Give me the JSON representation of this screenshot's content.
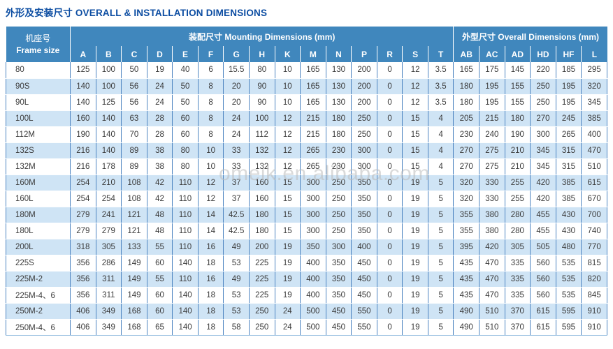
{
  "title": "外形及安装尺寸 OVERALL & INSTALLATION DIMENSIONS",
  "watermark": "omeik.en.alibaba.com",
  "colors": {
    "header_bg": "#4087bd",
    "header_text": "#ffffff",
    "row_alt_bg": "#cfe4f5",
    "grid_line": "#4e85c1",
    "cell_text": "#3b3b3b",
    "title_text": "#0c4da2",
    "watermark_text": "#bcbcbc"
  },
  "table": {
    "frame_header": {
      "zh": "机座号",
      "en": "Frame size"
    },
    "groups": [
      {
        "label": "装配尺寸 Mounting Dimensions (mm)",
        "span": 15
      },
      {
        "label": "外型尺寸 Overall Dimensions (mm)",
        "span": 6
      }
    ],
    "columns": [
      "A",
      "B",
      "C",
      "D",
      "E",
      "F",
      "G",
      "H",
      "K",
      "M",
      "N",
      "P",
      "R",
      "S",
      "T",
      "AB",
      "AC",
      "AD",
      "HD",
      "HF",
      "L"
    ],
    "rows": [
      {
        "frame": "80",
        "values": [
          "125",
          "100",
          "50",
          "19",
          "40",
          "6",
          "15.5",
          "80",
          "10",
          "165",
          "130",
          "200",
          "0",
          "12",
          "3.5",
          "165",
          "175",
          "145",
          "220",
          "185",
          "295"
        ]
      },
      {
        "frame": "90S",
        "values": [
          "140",
          "100",
          "56",
          "24",
          "50",
          "8",
          "20",
          "90",
          "10",
          "165",
          "130",
          "200",
          "0",
          "12",
          "3.5",
          "180",
          "195",
          "155",
          "250",
          "195",
          "320"
        ]
      },
      {
        "frame": "90L",
        "values": [
          "140",
          "125",
          "56",
          "24",
          "50",
          "8",
          "20",
          "90",
          "10",
          "165",
          "130",
          "200",
          "0",
          "12",
          "3.5",
          "180",
          "195",
          "155",
          "250",
          "195",
          "345"
        ]
      },
      {
        "frame": "100L",
        "values": [
          "160",
          "140",
          "63",
          "28",
          "60",
          "8",
          "24",
          "100",
          "12",
          "215",
          "180",
          "250",
          "0",
          "15",
          "4",
          "205",
          "215",
          "180",
          "270",
          "245",
          "385"
        ]
      },
      {
        "frame": "112M",
        "values": [
          "190",
          "140",
          "70",
          "28",
          "60",
          "8",
          "24",
          "112",
          "12",
          "215",
          "180",
          "250",
          "0",
          "15",
          "4",
          "230",
          "240",
          "190",
          "300",
          "265",
          "400"
        ]
      },
      {
        "frame": "132S",
        "values": [
          "216",
          "140",
          "89",
          "38",
          "80",
          "10",
          "33",
          "132",
          "12",
          "265",
          "230",
          "300",
          "0",
          "15",
          "4",
          "270",
          "275",
          "210",
          "345",
          "315",
          "470"
        ]
      },
      {
        "frame": "132M",
        "values": [
          "216",
          "178",
          "89",
          "38",
          "80",
          "10",
          "33",
          "132",
          "12",
          "265",
          "230",
          "300",
          "0",
          "15",
          "4",
          "270",
          "275",
          "210",
          "345",
          "315",
          "510"
        ]
      },
      {
        "frame": "160M",
        "values": [
          "254",
          "210",
          "108",
          "42",
          "110",
          "12",
          "37",
          "160",
          "15",
          "300",
          "250",
          "350",
          "0",
          "19",
          "5",
          "320",
          "330",
          "255",
          "420",
          "385",
          "615"
        ]
      },
      {
        "frame": "160L",
        "values": [
          "254",
          "254",
          "108",
          "42",
          "110",
          "12",
          "37",
          "160",
          "15",
          "300",
          "250",
          "350",
          "0",
          "19",
          "5",
          "320",
          "330",
          "255",
          "420",
          "385",
          "670"
        ]
      },
      {
        "frame": "180M",
        "values": [
          "279",
          "241",
          "121",
          "48",
          "110",
          "14",
          "42.5",
          "180",
          "15",
          "300",
          "250",
          "350",
          "0",
          "19",
          "5",
          "355",
          "380",
          "280",
          "455",
          "430",
          "700"
        ]
      },
      {
        "frame": "180L",
        "values": [
          "279",
          "279",
          "121",
          "48",
          "110",
          "14",
          "42.5",
          "180",
          "15",
          "300",
          "250",
          "350",
          "0",
          "19",
          "5",
          "355",
          "380",
          "280",
          "455",
          "430",
          "740"
        ]
      },
      {
        "frame": "200L",
        "values": [
          "318",
          "305",
          "133",
          "55",
          "110",
          "16",
          "49",
          "200",
          "19",
          "350",
          "300",
          "400",
          "0",
          "19",
          "5",
          "395",
          "420",
          "305",
          "505",
          "480",
          "770"
        ]
      },
      {
        "frame": "225S",
        "values": [
          "356",
          "286",
          "149",
          "60",
          "140",
          "18",
          "53",
          "225",
          "19",
          "400",
          "350",
          "450",
          "0",
          "19",
          "5",
          "435",
          "470",
          "335",
          "560",
          "535",
          "815"
        ]
      },
      {
        "frame": "225M-2",
        "values": [
          "356",
          "311",
          "149",
          "55",
          "110",
          "16",
          "49",
          "225",
          "19",
          "400",
          "350",
          "450",
          "0",
          "19",
          "5",
          "435",
          "470",
          "335",
          "560",
          "535",
          "820"
        ]
      },
      {
        "frame": "225M-4、6",
        "values": [
          "356",
          "311",
          "149",
          "60",
          "140",
          "18",
          "53",
          "225",
          "19",
          "400",
          "350",
          "450",
          "0",
          "19",
          "5",
          "435",
          "470",
          "335",
          "560",
          "535",
          "845"
        ]
      },
      {
        "frame": "250M-2",
        "values": [
          "406",
          "349",
          "168",
          "60",
          "140",
          "18",
          "53",
          "250",
          "24",
          "500",
          "450",
          "550",
          "0",
          "19",
          "5",
          "490",
          "510",
          "370",
          "615",
          "595",
          "910"
        ]
      },
      {
        "frame": "250M-4、6",
        "values": [
          "406",
          "349",
          "168",
          "65",
          "140",
          "18",
          "58",
          "250",
          "24",
          "500",
          "450",
          "550",
          "0",
          "19",
          "5",
          "490",
          "510",
          "370",
          "615",
          "595",
          "910"
        ]
      }
    ]
  }
}
